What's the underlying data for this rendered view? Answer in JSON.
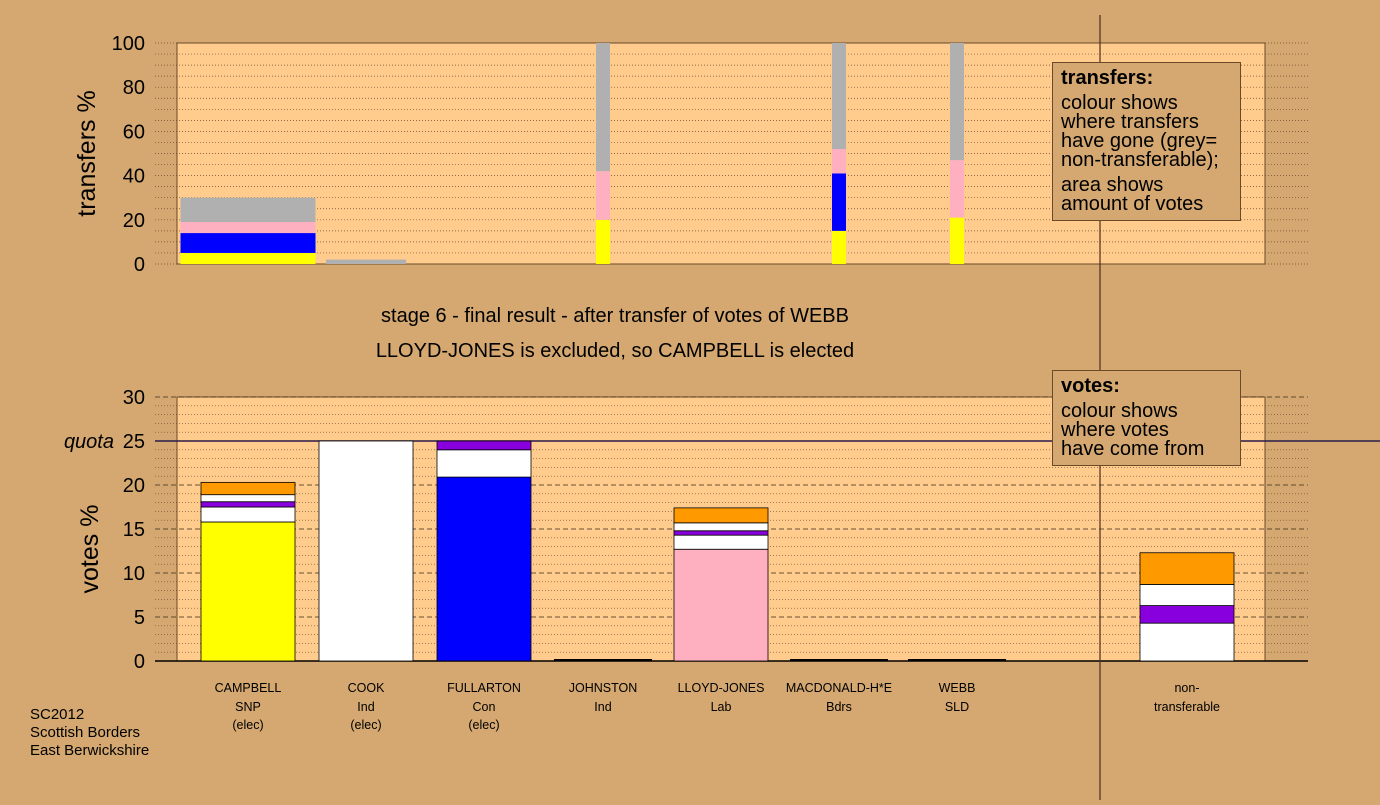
{
  "stage_title": "stage 6 - final result - after transfer of votes of WEBB",
  "stage_subtitle": "LLOYD-JONES is excluded, so CAMPBELL is elected",
  "footer": {
    "line1": "SC2012",
    "line2": "Scottish Borders",
    "line3": "East Berwickshire"
  },
  "legend_transfers": {
    "heading": "transfers:",
    "lines": [
      "colour shows",
      "where transfers",
      "have gone (grey=",
      "non-transferable);"
    ],
    "lines2": [
      "area shows",
      "amount of votes"
    ]
  },
  "legend_votes": {
    "heading": "votes:",
    "lines": [
      "colour shows",
      "where votes",
      "have come from"
    ]
  },
  "colors": {
    "background": "#d4a870",
    "plot_bg": "#ffcc8e",
    "SNP": "#ffff00",
    "Con": "#0000ff",
    "Lab": "#ffb0c0",
    "Ind": "#ffffff",
    "Bdrs": "#8800dd",
    "SLD": "#ff9900",
    "non_transferable": "#b0b0b0"
  },
  "chart_data": [
    {
      "type": "bar",
      "name": "transfers",
      "ylabel": "transfers %",
      "ylim": [
        0,
        100
      ],
      "yticks": [
        0,
        20,
        40,
        60,
        80,
        100
      ],
      "grid": true,
      "bars": [
        {
          "label": "CAMPBELL",
          "width_pct": 30,
          "segments": [
            {
              "party": "SNP",
              "value": 5
            },
            {
              "party": "Con",
              "value": 9
            },
            {
              "party": "Lab",
              "value": 5
            },
            {
              "party": "non_transferable",
              "value": 11
            }
          ]
        },
        {
          "label": "COOK",
          "width_pct": 1,
          "segments": [
            {
              "party": "non_transferable",
              "value": 2
            }
          ]
        },
        {
          "label": "JOHNSTON",
          "width_pct": 100,
          "segments": [
            {
              "party": "SNP",
              "value": 20
            },
            {
              "party": "Lab",
              "value": 22
            },
            {
              "party": "non_transferable",
              "value": 58
            }
          ]
        },
        {
          "label": "MACDONALD-H*E",
          "width_pct": 100,
          "segments": [
            {
              "party": "SNP",
              "value": 15
            },
            {
              "party": "Con",
              "value": 26
            },
            {
              "party": "Lab",
              "value": 11
            },
            {
              "party": "non_transferable",
              "value": 48
            }
          ]
        },
        {
          "label": "WEBB",
          "width_pct": 100,
          "segments": [
            {
              "party": "SNP",
              "value": 21
            },
            {
              "party": "Lab",
              "value": 26
            },
            {
              "party": "non_transferable",
              "value": 53
            }
          ]
        }
      ]
    },
    {
      "type": "bar",
      "name": "votes",
      "ylabel": "votes %",
      "ylim": [
        0,
        30
      ],
      "yticks": [
        0,
        5,
        10,
        15,
        20,
        25,
        30
      ],
      "quota_label": "quota",
      "quota": 25,
      "grid": true,
      "bars": [
        {
          "label": "CAMPBELL",
          "party": "SNP",
          "status": "(elec)",
          "segments": [
            {
              "party": "SNP",
              "value": 15.8
            },
            {
              "party": "Ind",
              "value": 1.7
            },
            {
              "party": "Bdrs",
              "value": 0.6
            },
            {
              "party": "Ind",
              "value": 0.8
            },
            {
              "party": "SLD",
              "value": 1.4
            }
          ]
        },
        {
          "label": "COOK",
          "party": "Ind",
          "status": "(elec)",
          "segments": [
            {
              "party": "Ind",
              "value": 25
            }
          ]
        },
        {
          "label": "FULLARTON",
          "party": "Con",
          "status": "(elec)",
          "segments": [
            {
              "party": "Con",
              "value": 20.9
            },
            {
              "party": "Ind",
              "value": 3.1
            },
            {
              "party": "Bdrs",
              "value": 1.0
            }
          ]
        },
        {
          "label": "JOHNSTON",
          "party": "Ind",
          "status": "",
          "segments": []
        },
        {
          "label": "LLOYD-JONES",
          "party": "Lab",
          "status": "",
          "segments": [
            {
              "party": "Lab",
              "value": 12.7
            },
            {
              "party": "Ind",
              "value": 1.6
            },
            {
              "party": "Bdrs",
              "value": 0.5
            },
            {
              "party": "Ind",
              "value": 0.9
            },
            {
              "party": "SLD",
              "value": 1.7
            }
          ]
        },
        {
          "label": "MACDONALD-H*E",
          "party": "Bdrs",
          "status": "",
          "segments": []
        },
        {
          "label": "WEBB",
          "party": "SLD",
          "status": "",
          "segments": []
        },
        {
          "label": "non-",
          "party": "transferable",
          "status": "",
          "segments": [
            {
              "party": "Ind",
              "value": 4.3
            },
            {
              "party": "Bdrs",
              "value": 2.0
            },
            {
              "party": "Ind",
              "value": 2.4
            },
            {
              "party": "SLD",
              "value": 3.6
            }
          ]
        }
      ]
    }
  ]
}
